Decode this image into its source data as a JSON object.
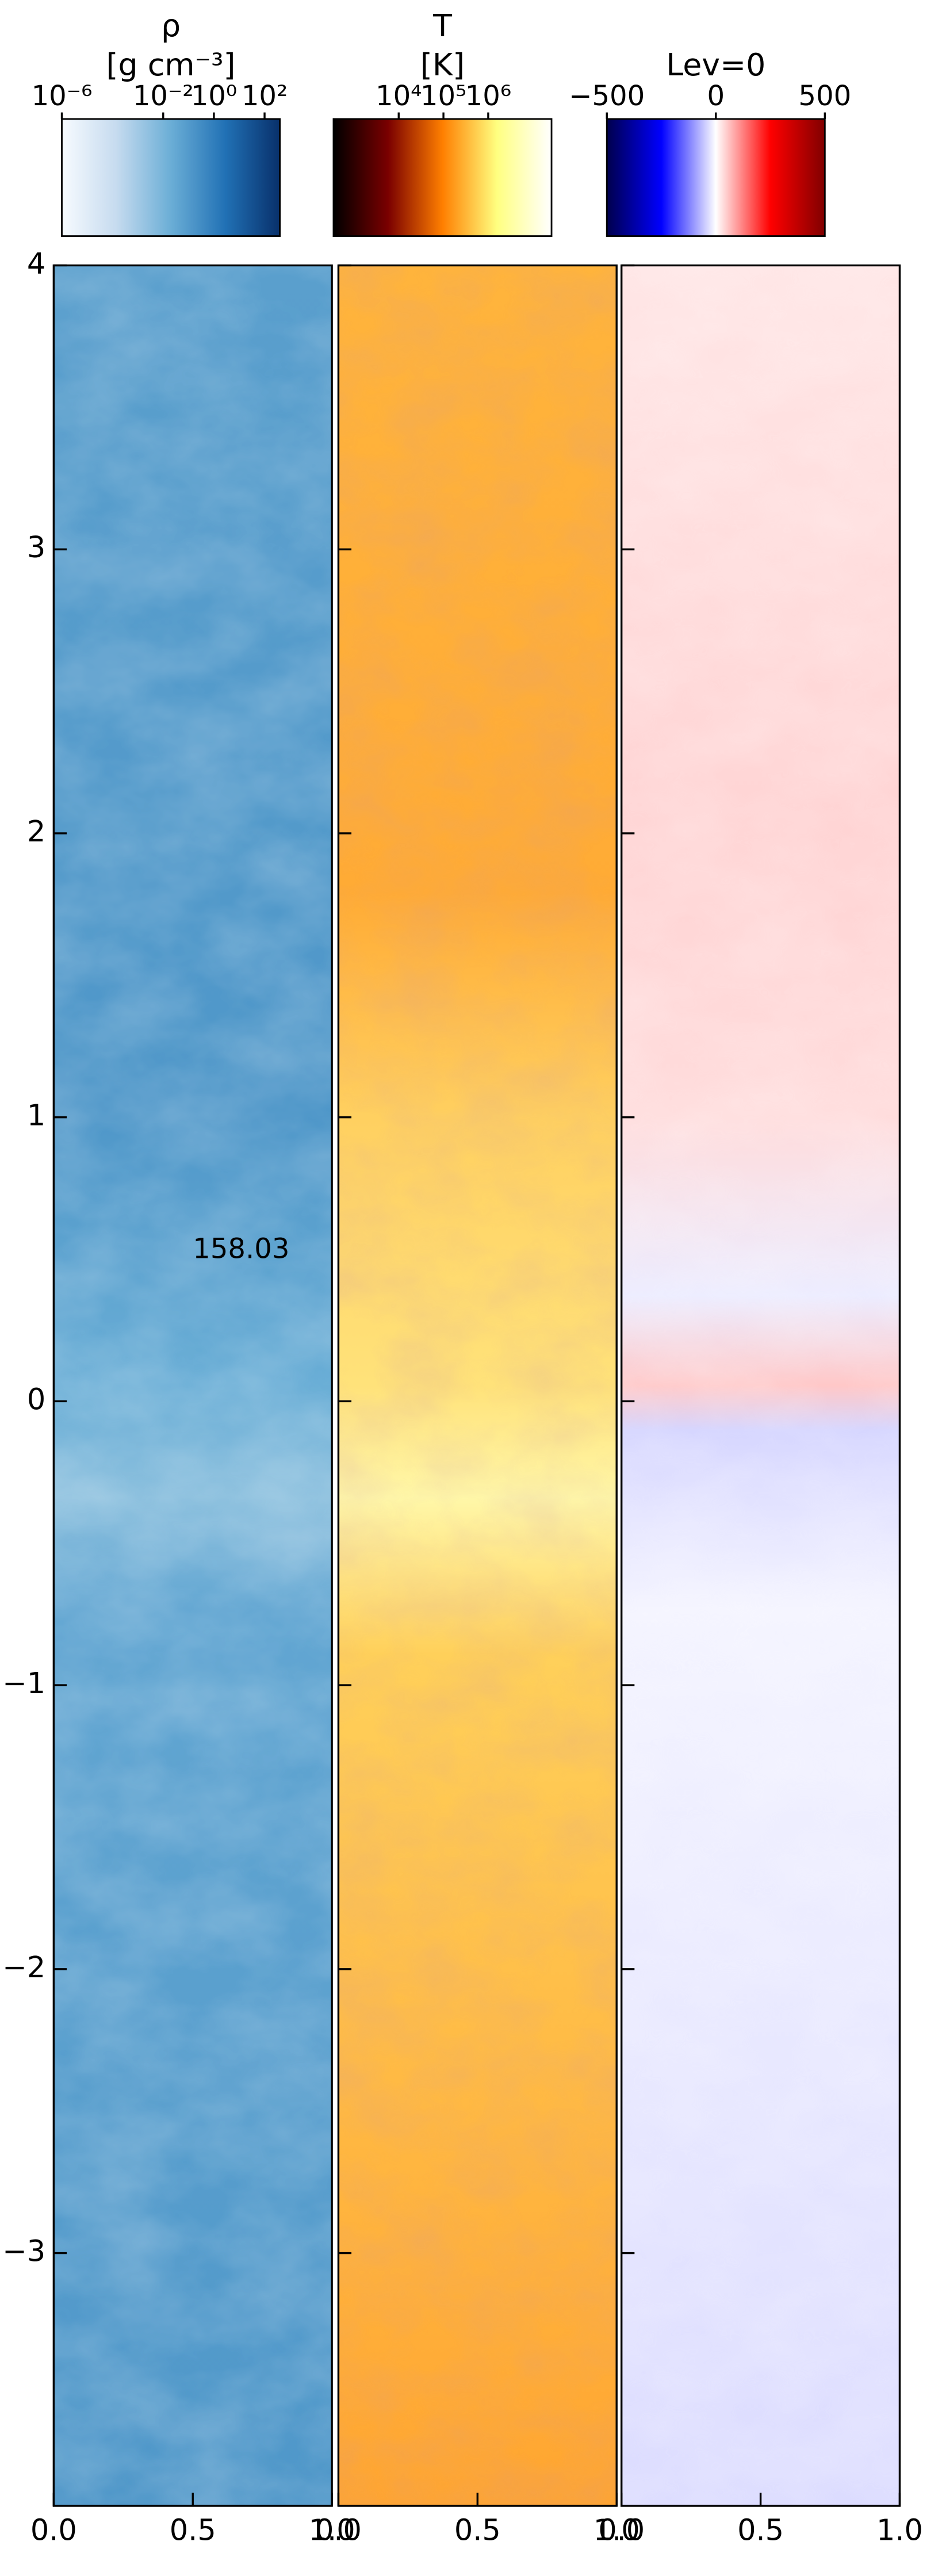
{
  "chart_data": [
    {
      "type": "image",
      "colorbar_label": [
        "ρ",
        "[g cm⁻³]"
      ],
      "colorbar_log": true,
      "clim": [
        1e-06,
        400
      ],
      "colorbar_ticks": [
        {
          "value": 1e-06,
          "label": "10⁻⁶"
        },
        {
          "value": 0.01,
          "label": "10⁻²"
        },
        {
          "value": 1,
          "label": "10⁰"
        },
        {
          "value": 100,
          "label": "10²"
        }
      ],
      "colorbar_colors": [
        "#f7fbff",
        "#c6dbef",
        "#6baed6",
        "#2171b5",
        "#08306b"
      ],
      "annotation": "158.03",
      "xlim": [
        0,
        1
      ],
      "xticks": [
        {
          "value": 0,
          "label": "0.0"
        },
        {
          "value": 0.5,
          "label": "0.5"
        },
        {
          "value": 1,
          "label": "1.0"
        }
      ],
      "ylim": [
        -3.89,
        4
      ],
      "yticks": [
        {
          "value": -3,
          "label": "−3"
        },
        {
          "value": -2,
          "label": "−2"
        },
        {
          "value": -1,
          "label": "−1"
        },
        0,
        1,
        2,
        3,
        4
      ],
      "show_ytick_labels": true
    },
    {
      "type": "image",
      "colorbar_label": [
        "T",
        "[K]"
      ],
      "colorbar_log": true,
      "clim": [
        350,
        26000000
      ],
      "colorbar_ticks": [
        {
          "value": 10000,
          "label": "10⁴"
        },
        {
          "value": 100000,
          "label": "10⁵"
        },
        {
          "value": 1000000,
          "label": "10⁶"
        }
      ],
      "colorbar_colors": [
        "#000000",
        "#7a0000",
        "#ff7f00",
        "#ffff80",
        "#ffffff"
      ],
      "xlim": [
        0,
        1
      ],
      "xticks": [
        {
          "value": 0,
          "label": "0.0"
        },
        {
          "value": 0.5,
          "label": "0.5"
        },
        {
          "value": 1,
          "label": "1.0"
        }
      ],
      "ylim": [
        -3.89,
        4
      ],
      "yticks": [
        -3,
        -2,
        -1,
        0,
        1,
        2,
        3,
        4
      ],
      "show_ytick_labels": false
    },
    {
      "type": "image",
      "colorbar_label": [
        "Lev=0"
      ],
      "colorbar_log": false,
      "clim": [
        -500,
        500
      ],
      "colorbar_ticks": [
        {
          "value": -500,
          "label": "−500"
        },
        0,
        500
      ],
      "colorbar_colors": [
        "#00004c",
        "#0000ff",
        "#ffffff",
        "#ff0000",
        "#800000"
      ],
      "xlim": [
        0,
        1
      ],
      "xticks": [
        {
          "value": 0,
          "label": "0.0"
        },
        {
          "value": 0.5,
          "label": "0.5"
        },
        {
          "value": 1,
          "label": "1.0"
        }
      ],
      "ylim": [
        -3.89,
        4
      ],
      "yticks": [
        -3,
        -2,
        -1,
        0,
        1,
        2,
        3,
        4
      ],
      "show_ytick_labels": false
    }
  ]
}
